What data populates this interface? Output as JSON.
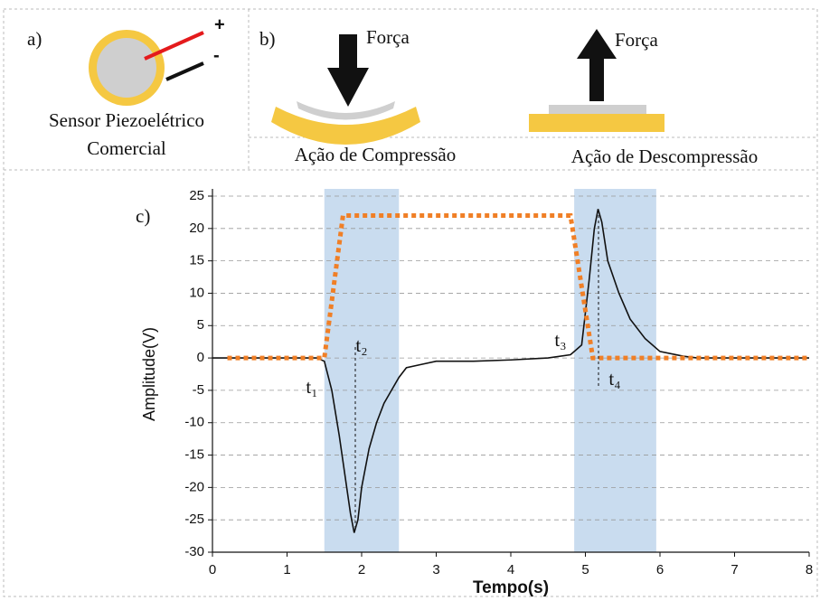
{
  "panel_a": {
    "label": "a)",
    "caption": [
      "Sensor Piezoelétrico",
      "Comercial"
    ],
    "polarity": [
      "+",
      "-"
    ]
  },
  "panel_b": {
    "label": "b)",
    "force": [
      "Força",
      "Força"
    ],
    "captions": [
      "Ação de Compressão",
      "Ação de Descompressão"
    ]
  },
  "chart_data": {
    "type": "line",
    "label": "c)",
    "x_label": "Tempo(s)",
    "y_label": "Amplitude(V)",
    "xlim": [
      0,
      8
    ],
    "xticks": [
      0,
      1,
      2,
      3,
      4,
      5,
      6,
      7,
      8
    ],
    "ylim": [
      -30,
      25
    ],
    "yticks": [
      -30,
      -25,
      -20,
      -15,
      -10,
      -5,
      0,
      5,
      10,
      15,
      20,
      25
    ],
    "grid": true,
    "spans": [
      [
        1.5,
        2.5
      ],
      [
        4.85,
        5.95
      ]
    ],
    "span_color": "#c9dcef",
    "annotations": [
      "t₁",
      "t₂",
      "t₃",
      "t₄"
    ],
    "series": [
      {
        "color": "#111111",
        "style": "solid",
        "x": [
          0,
          0.5,
          1.0,
          1.4,
          1.5,
          1.6,
          1.7,
          1.8,
          1.85,
          1.9,
          1.95,
          2.0,
          2.1,
          2.2,
          2.3,
          2.4,
          2.5,
          2.6,
          2.8,
          3.0,
          3.5,
          4.0,
          4.5,
          4.8,
          4.95,
          5.05,
          5.12,
          5.17,
          5.22,
          5.3,
          5.45,
          5.6,
          5.8,
          6.0,
          6.3,
          6.5,
          7.0,
          7.5,
          8.0
        ],
        "values": [
          0,
          0,
          0,
          0,
          -0.5,
          -5,
          -12,
          -20,
          -24,
          -27,
          -25,
          -20,
          -14,
          -10,
          -7,
          -5,
          -3,
          -1.5,
          -1,
          -0.5,
          -0.5,
          -0.3,
          0,
          0.5,
          2,
          12,
          20,
          23,
          21,
          15,
          10,
          6,
          3,
          1,
          0.3,
          0,
          0,
          0,
          0
        ]
      },
      {
        "color": "#f07f26",
        "style": "dotted",
        "x": [
          0.2,
          1.5,
          1.75,
          4.8,
          5.1,
          8.0
        ],
        "values": [
          0,
          0,
          22,
          22,
          0,
          0
        ]
      }
    ]
  }
}
